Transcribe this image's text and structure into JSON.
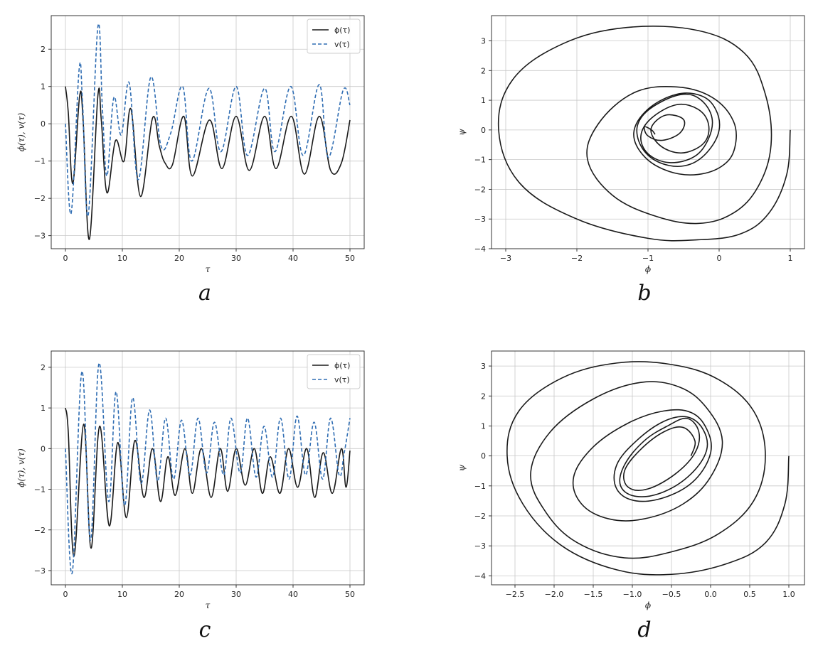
{
  "figure": {
    "panel_labels": [
      "a",
      "b",
      "c",
      "d"
    ]
  },
  "colors": {
    "phi": "#1a1a1a",
    "v": "#2f6db3",
    "grid": "#c8c8c8",
    "axes": "#222222"
  },
  "chart_data": [
    {
      "id": "a",
      "type": "line",
      "panel_label": "a",
      "xlabel": "τ",
      "ylabel": "ϕ(τ), v(τ)",
      "xlim": [
        -2.5,
        52.5
      ],
      "ylim": [
        -3.35,
        2.9
      ],
      "xticks": [
        0,
        10,
        20,
        30,
        40,
        50
      ],
      "yticks": [
        -3,
        -2,
        -1,
        0,
        1,
        2
      ],
      "grid": true,
      "legend": "top-right",
      "series": [
        {
          "name": "ϕ(τ)",
          "style": "solid",
          "x": [
            0,
            0.5,
            1.3,
            2.5,
            3.1,
            4.2,
            5.7,
            6.3,
            7.3,
            8.8,
            10.3,
            11.5,
            13.2,
            15.3,
            16.5,
            17.5,
            18.8,
            20.8,
            22.3,
            25.3,
            27.5,
            30.0,
            32.3,
            35.0,
            37.0,
            39.7,
            42.0,
            44.6,
            46.6,
            48.5,
            50.0
          ],
          "y": [
            1.0,
            0.3,
            -1.6,
            0.75,
            0.1,
            -3.1,
            0.75,
            0.1,
            -1.85,
            -0.45,
            -1.0,
            0.4,
            -1.95,
            0.15,
            -0.6,
            -1.05,
            -1.1,
            0.2,
            -1.4,
            0.1,
            -1.2,
            0.2,
            -1.25,
            0.2,
            -1.2,
            0.2,
            -1.35,
            0.2,
            -1.25,
            -1.05,
            0.1
          ]
        },
        {
          "name": "v(τ)",
          "style": "dashed",
          "x": [
            0,
            1.0,
            2.4,
            3.0,
            4.0,
            5.7,
            6.5,
            7.3,
            8.5,
            9.8,
            11.2,
            12.8,
            15.0,
            16.8,
            18.5,
            20.6,
            22.2,
            25.2,
            27.3,
            30.0,
            32.0,
            35.0,
            36.8,
            39.6,
            41.8,
            44.6,
            46.2,
            48.8,
            50.0
          ],
          "y": [
            0.0,
            -2.4,
            1.45,
            0.6,
            -2.45,
            2.6,
            0.4,
            -1.4,
            0.7,
            -0.3,
            1.1,
            -1.5,
            1.25,
            -0.6,
            -0.25,
            1.0,
            -1.0,
            0.95,
            -0.75,
            1.0,
            -0.85,
            0.95,
            -0.75,
            1.0,
            -0.85,
            1.05,
            -0.9,
            0.9,
            0.5
          ]
        }
      ]
    },
    {
      "id": "b",
      "type": "line",
      "panel_label": "b",
      "xlabel": "ϕ",
      "ylabel": "ψ",
      "xlim": [
        -3.2,
        1.2
      ],
      "ylim": [
        -4.0,
        3.85
      ],
      "xticks": [
        -3,
        -2,
        -1,
        0,
        1
      ],
      "yticks": [
        -4,
        -3,
        -2,
        -1,
        0,
        1,
        2,
        3
      ],
      "grid": true,
      "legend": "none",
      "series": [
        {
          "x": [
            1.0,
            0.95,
            0.7,
            0.3,
            -0.3,
            -1.0,
            -2.0,
            -2.8,
            -3.1,
            -2.9,
            -2.2,
            -1.3,
            -0.3,
            0.35,
            0.65,
            0.73,
            0.55,
            0.2,
            -0.3,
            -0.9,
            -1.5,
            -1.85,
            -1.7,
            -1.2,
            -0.6,
            -0.1,
            0.2,
            0.22,
            0.05,
            -0.3,
            -0.7,
            -1.05,
            -1.2,
            -1.0,
            -0.6,
            -0.25,
            -0.05,
            0.0,
            -0.15,
            -0.4,
            -0.7,
            -1.0,
            -1.15,
            -1.1,
            -0.85,
            -0.5,
            -0.25,
            -0.1,
            -0.15,
            -0.35,
            -0.7,
            -1.0,
            -1.1,
            -0.95,
            -0.6,
            -0.3,
            -0.15,
            -0.2,
            -0.45,
            -0.7,
            -0.9,
            -0.95,
            -0.75,
            -0.5,
            -0.55,
            -0.8,
            -1.0,
            -1.05,
            -0.95,
            -0.9
          ],
          "y": [
            0.0,
            -1.5,
            -2.8,
            -3.5,
            -3.7,
            -3.65,
            -3.0,
            -1.8,
            0.0,
            1.7,
            2.9,
            3.45,
            3.35,
            2.6,
            1.2,
            -0.5,
            -1.9,
            -2.8,
            -3.15,
            -2.9,
            -2.2,
            -1.0,
            0.2,
            1.25,
            1.45,
            1.1,
            0.3,
            -0.6,
            -1.2,
            -1.5,
            -1.4,
            -0.9,
            -0.1,
            0.7,
            1.2,
            1.15,
            0.7,
            0.0,
            -0.7,
            -1.15,
            -1.2,
            -0.85,
            -0.2,
            0.4,
            0.9,
            1.2,
            1.0,
            0.4,
            -0.3,
            -0.9,
            -1.1,
            -0.8,
            -0.2,
            0.4,
            0.85,
            0.7,
            0.2,
            -0.4,
            -0.75,
            -0.7,
            -0.35,
            0.1,
            0.5,
            0.35,
            -0.1,
            -0.35,
            -0.2,
            0.1,
            0.0,
            -0.15
          ]
        }
      ]
    },
    {
      "id": "c",
      "type": "line",
      "panel_label": "c",
      "xlabel": "τ",
      "ylabel": "ϕ(τ), v(τ)",
      "xlim": [
        -2.5,
        52.5
      ],
      "ylim": [
        -3.35,
        2.4
      ],
      "xticks": [
        0,
        10,
        20,
        30,
        40,
        50
      ],
      "yticks": [
        -3,
        -2,
        -1,
        0,
        1,
        2
      ],
      "grid": true,
      "legend": "top-right",
      "series": [
        {
          "name": "ϕ(τ)",
          "style": "solid",
          "x": [
            0,
            0.5,
            1.5,
            3.2,
            4.5,
            6.0,
            7.7,
            9.2,
            10.7,
            12.2,
            13.8,
            15.3,
            16.7,
            18.0,
            19.3,
            21.0,
            22.3,
            23.9,
            25.6,
            27.2,
            28.5,
            30.0,
            31.6,
            33.2,
            34.6,
            36.0,
            37.7,
            39.2,
            40.8,
            42.4,
            43.8,
            45.3,
            46.9,
            48.5,
            49.3,
            50.0
          ],
          "y": [
            1.0,
            0.4,
            -2.65,
            0.6,
            -2.45,
            0.55,
            -1.9,
            0.15,
            -1.7,
            0.2,
            -1.2,
            0.0,
            -1.3,
            -0.2,
            -1.15,
            0.0,
            -1.1,
            0.0,
            -1.2,
            0.0,
            -1.05,
            0.0,
            -0.9,
            0.0,
            -1.1,
            -0.2,
            -1.1,
            0.0,
            -0.95,
            0.0,
            -1.2,
            -0.1,
            -1.1,
            0.0,
            -0.95,
            -0.05
          ]
        },
        {
          "name": "v(τ)",
          "style": "dashed",
          "x": [
            0,
            1.2,
            2.9,
            4.4,
            5.9,
            7.6,
            8.9,
            10.4,
            11.8,
            13.3,
            14.8,
            16.2,
            17.6,
            19.0,
            20.4,
            21.9,
            23.3,
            24.8,
            26.2,
            27.8,
            29.1,
            30.7,
            32.0,
            33.5,
            34.9,
            36.4,
            37.8,
            39.3,
            40.7,
            42.2,
            43.7,
            45.2,
            46.6,
            48.1,
            49.0,
            50.0
          ],
          "y": [
            0.0,
            -3.05,
            1.9,
            -2.25,
            2.1,
            -1.3,
            1.4,
            -1.4,
            1.25,
            -0.85,
            0.95,
            -0.8,
            0.75,
            -0.75,
            0.7,
            -0.65,
            0.75,
            -0.6,
            0.65,
            -0.65,
            0.75,
            -0.6,
            0.75,
            -0.7,
            0.55,
            -0.7,
            0.75,
            -0.75,
            0.8,
            -0.65,
            0.65,
            -0.75,
            0.75,
            -0.65,
            -0.1,
            0.75
          ]
        }
      ]
    },
    {
      "id": "d",
      "type": "line",
      "panel_label": "d",
      "xlabel": "ϕ",
      "ylabel": "ψ",
      "xlim": [
        -2.8,
        1.2
      ],
      "ylim": [
        -4.3,
        3.5
      ],
      "xticks": [
        -2.5,
        -2.0,
        -1.5,
        -1.0,
        -0.5,
        0.0,
        0.5,
        1.0
      ],
      "xticklabels": [
        "−2.5",
        "−2.0",
        "−1.5",
        "−1.0",
        "−0.5",
        "0.0",
        "0.5",
        "1.0"
      ],
      "yticks": [
        -4,
        -3,
        -2,
        -1,
        0,
        1,
        2,
        3
      ],
      "grid": true,
      "legend": "none",
      "series": [
        {
          "x": [
            1.0,
            0.95,
            0.7,
            0.2,
            -0.5,
            -1.2,
            -1.9,
            -2.4,
            -2.6,
            -2.45,
            -1.9,
            -1.2,
            -0.5,
            0.1,
            0.55,
            0.7,
            0.55,
            0.1,
            -0.5,
            -1.1,
            -1.7,
            -2.1,
            -2.3,
            -2.05,
            -1.5,
            -0.9,
            -0.4,
            -0.05,
            0.15,
            0.0,
            -0.35,
            -0.85,
            -1.3,
            -1.65,
            -1.75,
            -1.5,
            -1.05,
            -0.6,
            -0.25,
            -0.05,
            -0.0,
            -0.2,
            -0.55,
            -0.95,
            -1.2,
            -1.2,
            -0.95,
            -0.6,
            -0.3,
            -0.1,
            -0.05,
            -0.25,
            -0.6,
            -0.95,
            -1.15,
            -1.1,
            -0.85,
            -0.55,
            -0.3,
            -0.15,
            -0.2,
            -0.45,
            -0.8,
            -1.05,
            -1.1,
            -0.9,
            -0.6,
            -0.35,
            -0.2,
            -0.25
          ],
          "y": [
            0.0,
            -1.6,
            -2.9,
            -3.6,
            -3.95,
            -3.8,
            -3.0,
            -1.6,
            0.0,
            1.5,
            2.6,
            3.1,
            3.05,
            2.55,
            1.5,
            0.0,
            -1.5,
            -2.6,
            -3.2,
            -3.4,
            -2.9,
            -1.9,
            -0.6,
            0.8,
            1.9,
            2.45,
            2.3,
            1.6,
            0.5,
            -0.7,
            -1.6,
            -2.1,
            -2.1,
            -1.6,
            -0.7,
            0.3,
            1.1,
            1.5,
            1.45,
            0.9,
            0.1,
            -0.8,
            -1.35,
            -1.5,
            -1.1,
            -0.3,
            0.5,
            1.15,
            1.3,
            0.9,
            0.2,
            -0.6,
            -1.2,
            -1.35,
            -1.0,
            -0.3,
            0.5,
            1.0,
            1.25,
            0.8,
            0.1,
            -0.6,
            -1.1,
            -1.05,
            -0.5,
            0.2,
            0.8,
            0.95,
            0.5,
            0.0
          ]
        }
      ]
    }
  ]
}
